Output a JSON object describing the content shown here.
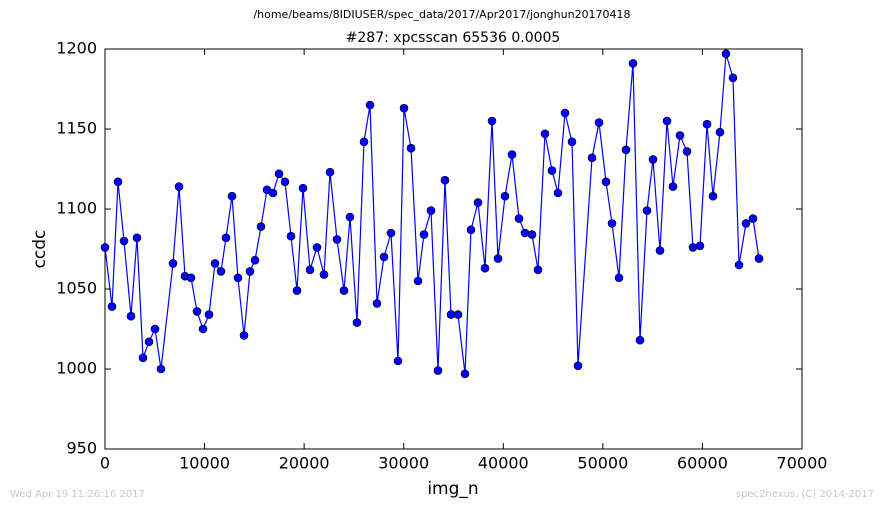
{
  "chart_data": {
    "type": "line",
    "title": "/home/beams/8IDIUSER/spec_data/2017/Apr2017/jonghun20170418",
    "subtitle": "#287: xpcsscan 65536 0.0005",
    "x_label": "img_n",
    "y_label": "ccdc",
    "footer_left": "Wed Apr 19 11:26:16 2017",
    "footer_right": "spec2nexus, (C) 2014-2017",
    "x": [
      0,
      703,
      1306,
      1908,
      2611,
      3214,
      3816,
      4419,
      5022,
      5624,
      6829,
      7432,
      8034,
      8637,
      9240,
      9842,
      10445,
      11047,
      11650,
      12152,
      12755,
      13357,
      13960,
      14562,
      15065,
      15667,
      16270,
      16872,
      17475,
      18077,
      18680,
      19283,
      19885,
      20588,
      21291,
      21994,
      22597,
      23300,
      24003,
      24605,
      25308,
      26011,
      26614,
      27317,
      28020,
      28723,
      29426,
      30029,
      30732,
      31435,
      32037,
      32740,
      33443,
      34146,
      34749,
      35452,
      36155,
      36757,
      37460,
      38163,
      38866,
      39469,
      40172,
      40875,
      41578,
      42181,
      42884,
      43486,
      44189,
      44892,
      45495,
      46198,
      46901,
      47503,
      48909,
      49612,
      50315,
      50918,
      51621,
      52324,
      53027,
      53730,
      54433,
      55036,
      55739,
      56442,
      57044,
      57747,
      58450,
      59053,
      59756,
      60459,
      61061,
      61764,
      62367,
      63070,
      63672,
      64375,
      65078,
      65681
    ],
    "series": [
      {
        "color": "#0000ff",
        "values": [
          1076,
          1039,
          1117,
          1080,
          1033,
          1082,
          1007,
          1017,
          1025,
          1000,
          1066,
          1114,
          1058,
          1057,
          1036,
          1025,
          1034,
          1066,
          1061,
          1082,
          1108,
          1057,
          1021,
          1061,
          1068,
          1089,
          1112,
          1110,
          1122,
          1117,
          1083,
          1049,
          1113,
          1062,
          1076,
          1059,
          1123,
          1081,
          1049,
          1095,
          1029,
          1142,
          1165,
          1041,
          1070,
          1085,
          1005,
          1163,
          1138,
          1055,
          1084,
          1099,
          999,
          1118,
          1034,
          1034,
          997,
          1087,
          1104,
          1063,
          1155,
          1069,
          1108,
          1134,
          1094,
          1085,
          1084,
          1062,
          1147,
          1124,
          1110,
          1160,
          1142,
          1002,
          1132,
          1154,
          1117,
          1091,
          1057,
          1137,
          1191,
          1018,
          1099,
          1131,
          1074,
          1155,
          1114,
          1146,
          1136,
          1076,
          1077,
          1153,
          1108,
          1148,
          1197,
          1182,
          1065,
          1091,
          1094,
          1069
        ]
      }
    ],
    "xlim": [
      0,
      70000
    ],
    "xticks": [
      0,
      10000,
      20000,
      30000,
      40000,
      50000,
      60000,
      70000
    ],
    "ylim": [
      950,
      1200
    ],
    "yticks": [
      950,
      1000,
      1050,
      1100,
      1150,
      1200
    ]
  }
}
